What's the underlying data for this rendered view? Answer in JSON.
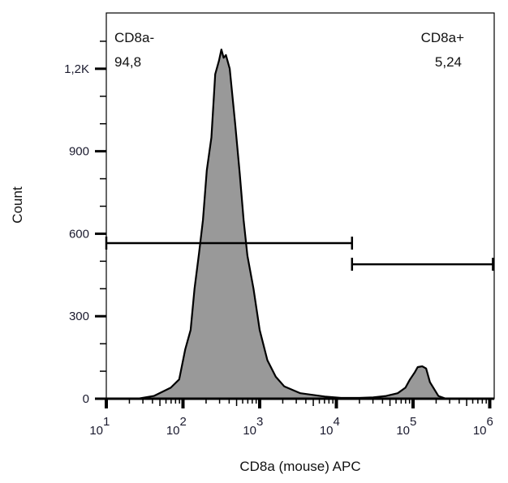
{
  "chart_data": {
    "type": "area",
    "title": "",
    "xlabel": "CD8a (mouse) APC",
    "ylabel": "Count",
    "x_scale": "log",
    "xlim": [
      10,
      1000000
    ],
    "ylim": [
      0,
      1350
    ],
    "x_ticks": [
      {
        "exp": "1",
        "base": "10"
      },
      {
        "exp": "2",
        "base": "10"
      },
      {
        "exp": "3",
        "base": "10"
      },
      {
        "exp": "4",
        "base": "10"
      },
      {
        "exp": "5",
        "base": "10"
      },
      {
        "exp": "6",
        "base": "10"
      }
    ],
    "y_ticks": [
      {
        "value": 0,
        "label": "0"
      },
      {
        "value": 300,
        "label": "300"
      },
      {
        "value": 600,
        "label": "600"
      },
      {
        "value": 900,
        "label": "900"
      },
      {
        "value": 1200,
        "label": "1,2K"
      }
    ],
    "fill_color": "#999999",
    "series": [
      {
        "x_log10": [
          1.3,
          1.41,
          1.62,
          1.84,
          1.95,
          2.03,
          2.1,
          2.15,
          2.21,
          2.26,
          2.31,
          2.37,
          2.42,
          2.47,
          2.5,
          2.53,
          2.56,
          2.61,
          2.68,
          2.74,
          2.79,
          2.84,
          2.92,
          3.0,
          3.1,
          3.21,
          3.32,
          3.53,
          3.85,
          4.06,
          4.3,
          4.48,
          4.65,
          4.8,
          4.9,
          4.96,
          5.02,
          5.06,
          5.12,
          5.17,
          5.22,
          5.33,
          5.43,
          6.0
        ],
        "y": [
          0,
          0,
          10,
          40,
          70,
          180,
          250,
          400,
          530,
          650,
          830,
          950,
          1180,
          1230,
          1270,
          1240,
          1250,
          1200,
          1000,
          820,
          650,
          520,
          400,
          250,
          140,
          80,
          45,
          20,
          8,
          3,
          3,
          5,
          10,
          20,
          40,
          70,
          95,
          115,
          118,
          110,
          60,
          10,
          0,
          0
        ]
      }
    ],
    "gates": [
      {
        "name": "CD8a-",
        "value": "94,8",
        "range": [
          10,
          16000
        ],
        "level": 566
      },
      {
        "name": "CD8a+",
        "value": "5,24",
        "range": [
          16000,
          1100000
        ],
        "level": 489
      }
    ],
    "grid": false
  }
}
